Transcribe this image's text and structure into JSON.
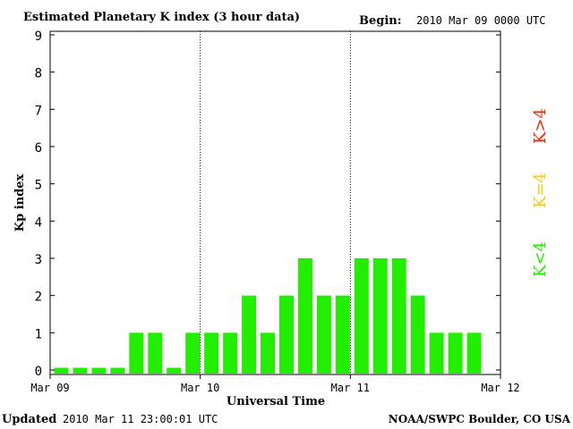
{
  "header": {
    "title": "Estimated Planetary K index (3 hour data)",
    "begin_label": "Begin:",
    "begin_value": "2010 Mar 09 0000 UTC"
  },
  "footer": {
    "updated_label": "Updated",
    "updated_value": "2010 Mar 11 23:00:01 UTC",
    "source": "NOAA/SWPC Boulder, CO USA"
  },
  "chart_data": {
    "type": "bar",
    "title": "Estimated Planetary K index (3 hour data)",
    "xlabel": "Universal Time",
    "ylabel": "Kp index",
    "ylim": [
      0,
      9
    ],
    "yticks": [
      "0",
      "1",
      "2",
      "3",
      "4",
      "5",
      "6",
      "7",
      "8",
      "9"
    ],
    "xticks": [
      "Mar 09",
      "Mar 10",
      "Mar 11",
      "Mar 12"
    ],
    "days": 3,
    "intervals_per_day": 8,
    "grid": false,
    "day_separators": "dotted vertical lines",
    "values": [
      0,
      0,
      0,
      0,
      1,
      1,
      0,
      1,
      1,
      1,
      2,
      1,
      2,
      3,
      2,
      2,
      3,
      3,
      3,
      2,
      1,
      1,
      1
    ],
    "legend": [
      {
        "label": "K<4",
        "color": "#22ee00"
      },
      {
        "label": "K=4",
        "color": "#ffcc00"
      },
      {
        "label": "K>4",
        "color": "#ff2200"
      }
    ],
    "colors": {
      "below": "#22ee00",
      "equal": "#ffcc00",
      "above": "#ff2200"
    }
  }
}
